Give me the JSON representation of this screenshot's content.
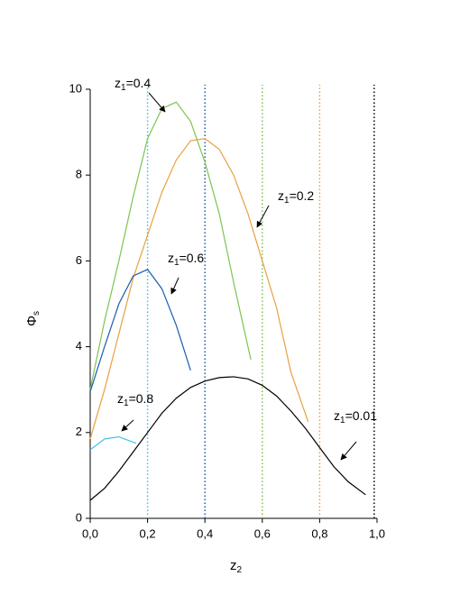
{
  "chart_data": {
    "type": "line",
    "x_label": {
      "main": "z",
      "sub": "2"
    },
    "y_label": {
      "main": "Φ",
      "sub": "s"
    },
    "xlim": [
      0,
      1
    ],
    "ylim": [
      0,
      10
    ],
    "xticks": [
      {
        "value": 0,
        "label": "0,0"
      },
      {
        "value": 0.2,
        "label": "0,2"
      },
      {
        "value": 0.4,
        "label": "0,4"
      },
      {
        "value": 0.6,
        "label": "0,6"
      },
      {
        "value": 0.8,
        "label": "0,8"
      },
      {
        "value": 1,
        "label": "1,0"
      }
    ],
    "yticks": [
      0,
      2,
      4,
      6,
      8,
      10
    ],
    "series": [
      {
        "color": "#000000",
        "label": {
          "main": "z",
          "sub": "1",
          "tail": "=0.01"
        },
        "x": [
          0,
          0.05,
          0.1,
          0.15,
          0.2,
          0.25,
          0.3,
          0.35,
          0.4,
          0.45,
          0.5,
          0.55,
          0.6,
          0.65,
          0.7,
          0.75,
          0.8,
          0.85,
          0.9,
          0.96
        ],
        "values": [
          0.42,
          0.7,
          1.1,
          1.55,
          2.0,
          2.45,
          2.8,
          3.05,
          3.2,
          3.28,
          3.3,
          3.25,
          3.1,
          2.85,
          2.5,
          2.1,
          1.65,
          1.2,
          0.85,
          0.55
        ]
      },
      {
        "color": "#e8a040",
        "label": {
          "main": "z",
          "sub": "1",
          "tail": "=0.2"
        },
        "x": [
          0,
          0.05,
          0.1,
          0.15,
          0.2,
          0.25,
          0.3,
          0.35,
          0.4,
          0.45,
          0.5,
          0.55,
          0.6,
          0.65,
          0.7,
          0.76
        ],
        "values": [
          1.85,
          3.0,
          4.3,
          5.6,
          6.6,
          7.6,
          8.35,
          8.8,
          8.85,
          8.6,
          8.0,
          7.1,
          6.0,
          4.9,
          3.4,
          2.25
        ]
      },
      {
        "color": "#7cc450",
        "label": {
          "main": "z",
          "sub": "1",
          "tail": "=0.4"
        },
        "x": [
          0,
          0.05,
          0.1,
          0.15,
          0.2,
          0.25,
          0.3,
          0.35,
          0.4,
          0.45,
          0.5,
          0.56
        ],
        "values": [
          3.0,
          4.6,
          6.0,
          7.5,
          8.85,
          9.55,
          9.7,
          9.25,
          8.3,
          7.1,
          5.5,
          3.7
        ]
      },
      {
        "color": "#1a5cb0",
        "label": {
          "main": "z",
          "sub": "1",
          "tail": "=0.6"
        },
        "x": [
          0,
          0.05,
          0.1,
          0.15,
          0.2,
          0.25,
          0.3,
          0.35
        ],
        "values": [
          2.95,
          4.0,
          5.0,
          5.65,
          5.8,
          5.35,
          4.5,
          3.45
        ]
      },
      {
        "color": "#40c0e0",
        "label": {
          "main": "z",
          "sub": "1",
          "tail": "=0.8"
        },
        "x": [
          0,
          0.05,
          0.1,
          0.16
        ],
        "values": [
          1.6,
          1.85,
          1.9,
          1.75
        ]
      }
    ],
    "vlines": [
      {
        "x": 0.2,
        "color": "#40c0e0"
      },
      {
        "x": 0.4,
        "color": "#1a5cb0"
      },
      {
        "x": 0.6,
        "color": "#7cc450"
      },
      {
        "x": 0.8,
        "color": "#e8a040"
      },
      {
        "x": 0.99,
        "color": "#000000"
      }
    ]
  }
}
